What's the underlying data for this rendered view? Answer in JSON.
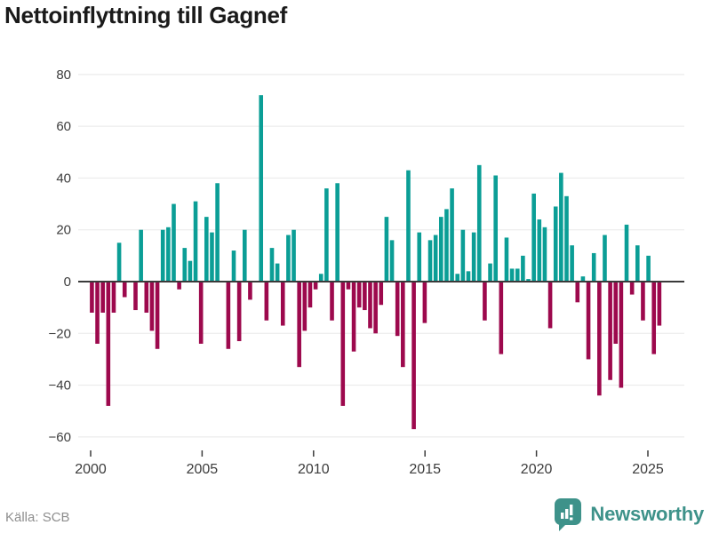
{
  "header": {
    "title": "Nettoinflyttning till Gagnef"
  },
  "footer": {
    "source": "Källa: SCB",
    "brand": "Newsworthy"
  },
  "chart_data": {
    "type": "bar",
    "title": "Nettoinflyttning till Gagnef",
    "frequency": "quarterly",
    "start_year": 2000,
    "start_quarter": 1,
    "values": [
      -12,
      -24,
      -12,
      -48,
      -12,
      15,
      -6,
      0,
      -11,
      20,
      -12,
      -19,
      -26,
      20,
      21,
      30,
      -3,
      13,
      8,
      31,
      -24,
      25,
      19,
      38,
      0,
      -26,
      12,
      -23,
      20,
      -7,
      0,
      72,
      -15,
      13,
      7,
      -17,
      18,
      20,
      -33,
      -19,
      -10,
      -3,
      3,
      36,
      -15,
      38,
      -48,
      -3,
      -27,
      -10,
      -11,
      -18,
      -20,
      -9,
      25,
      16,
      -21,
      -33,
      43,
      -57,
      19,
      -16,
      16,
      18,
      25,
      28,
      36,
      3,
      20,
      4,
      19,
      45,
      -15,
      7,
      41,
      -28,
      17,
      5,
      5,
      10,
      1,
      34,
      24,
      21,
      -18,
      29,
      42,
      33,
      14,
      -8,
      2,
      -30,
      11,
      -44,
      18,
      -38,
      -24,
      -41,
      22,
      -5,
      14,
      -15,
      10,
      -28,
      -17
    ],
    "y_ticks": [
      80,
      60,
      40,
      20,
      0,
      -20,
      -40,
      -60
    ],
    "y_tick_labels": [
      "80",
      "60",
      "40",
      "20",
      "0",
      "−20",
      "−40",
      "−60"
    ],
    "x_tick_labels": [
      "2000",
      "2005",
      "2010",
      "2015",
      "2020",
      "2025"
    ],
    "ylim": [
      -60,
      80
    ],
    "grid": true,
    "legend": false,
    "positive_color": "#0b9e96",
    "negative_color": "#9d094d",
    "zero_line_color": "#3a3a3a",
    "gridline_color": "#e8e8e8",
    "axis_label_color": "#3c3c3c"
  },
  "brand_style": {
    "color": "#3e928a"
  }
}
